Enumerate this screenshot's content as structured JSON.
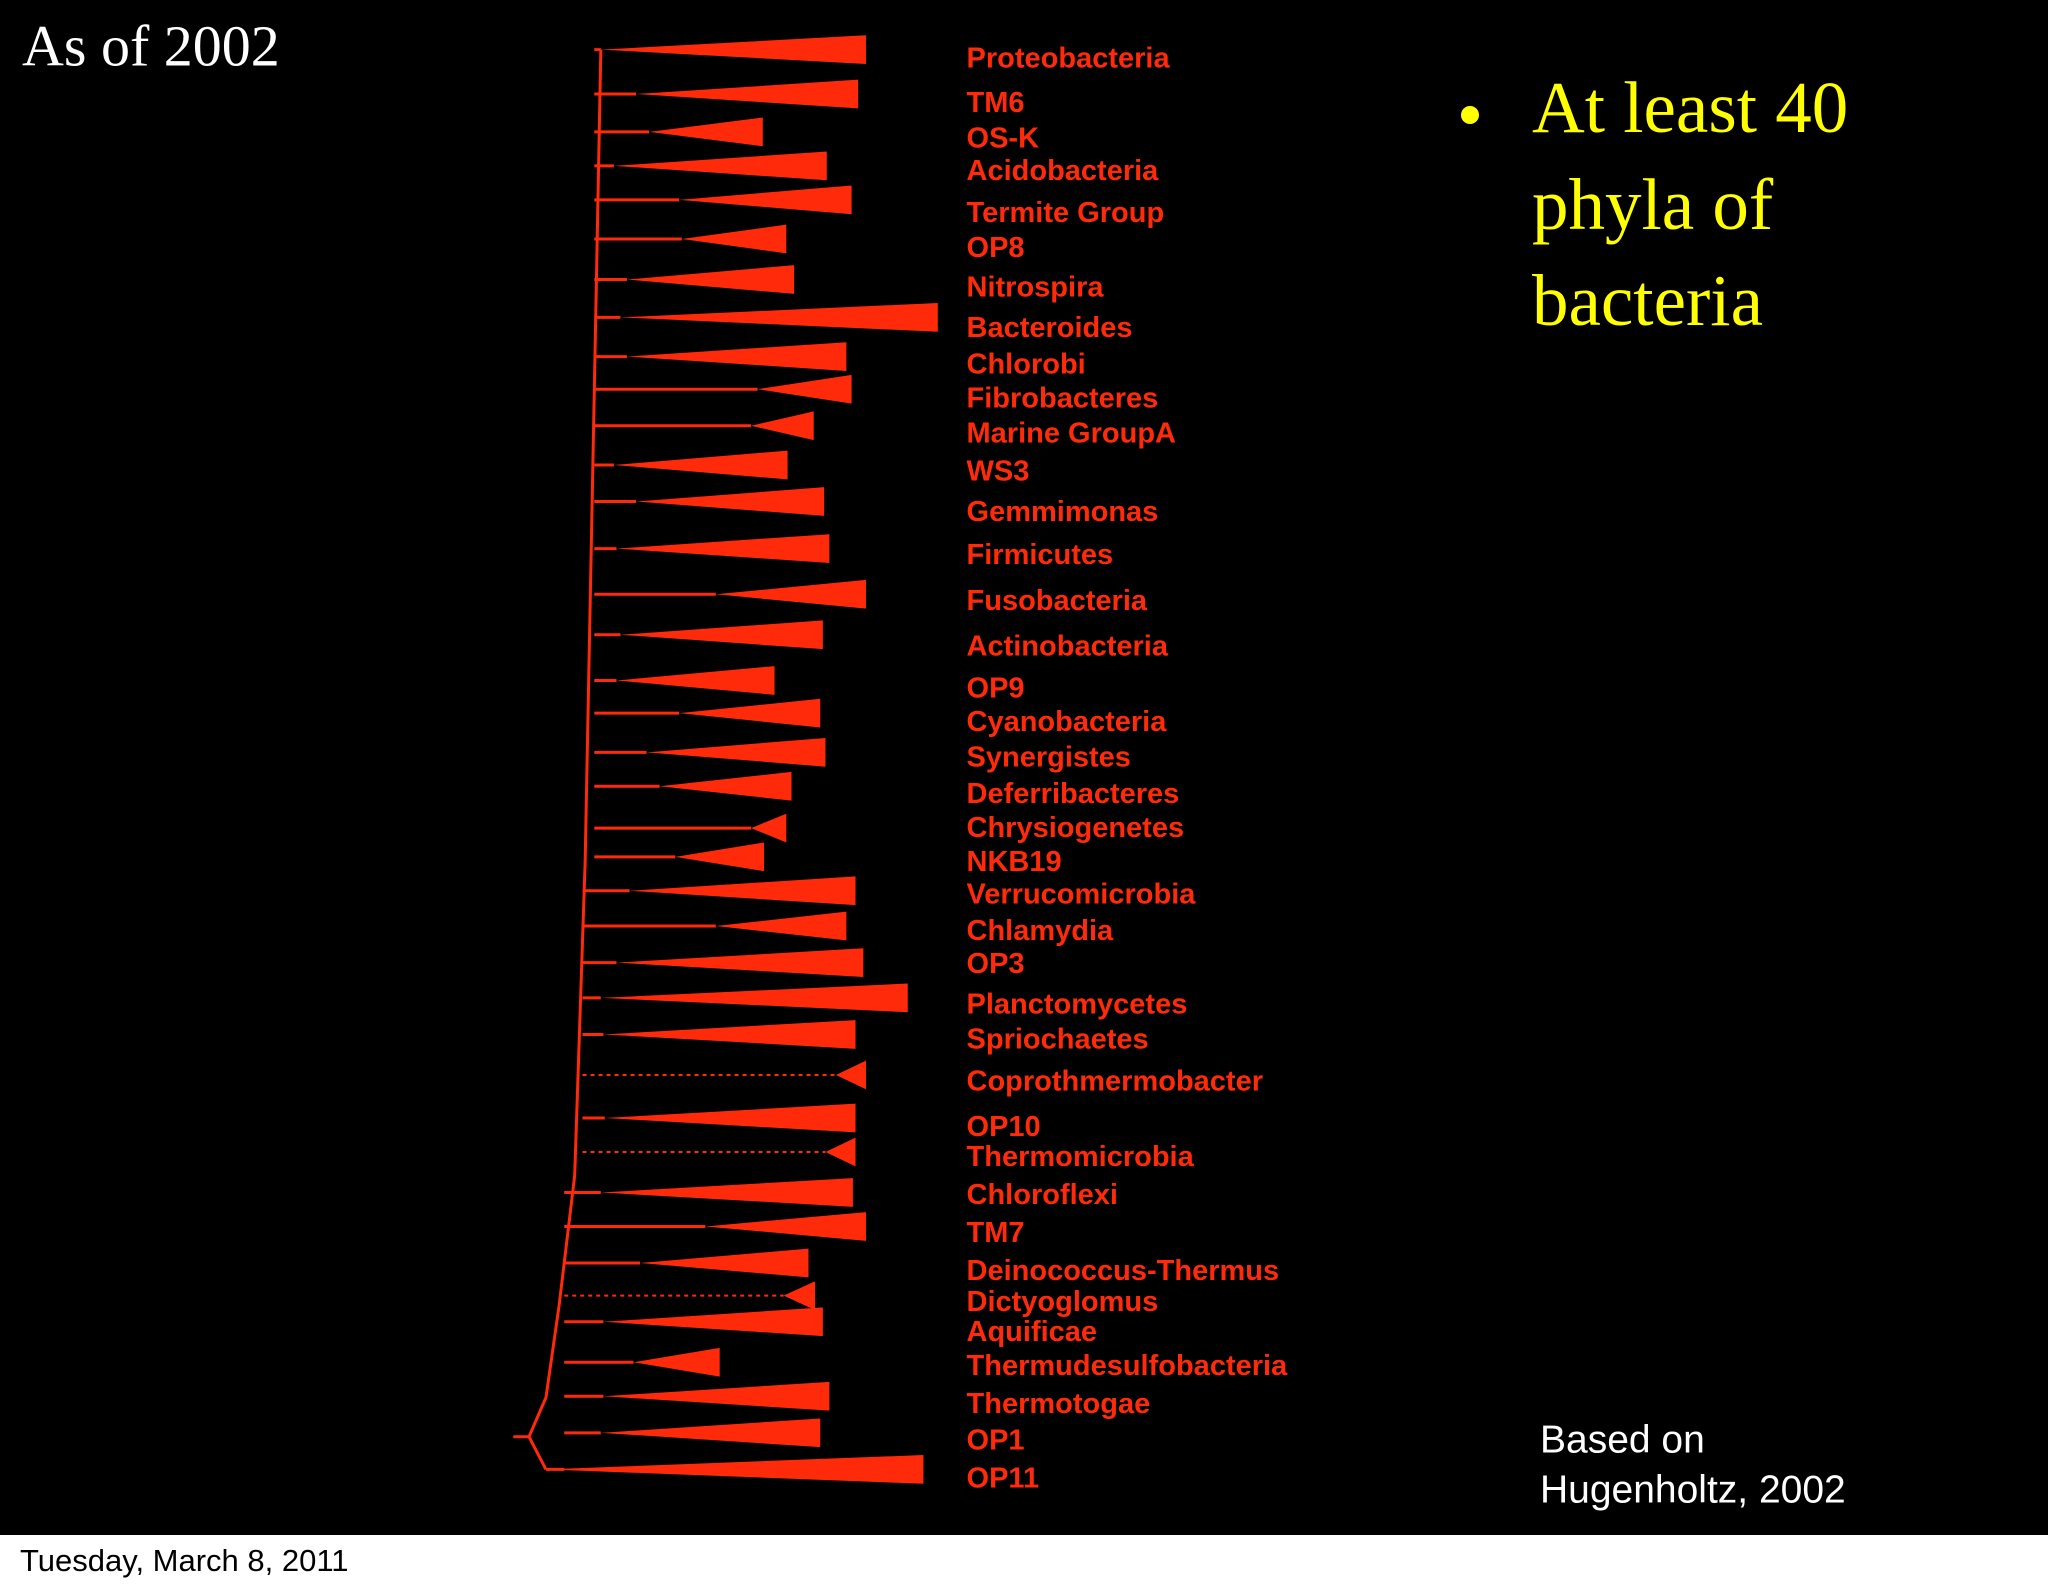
{
  "title": "As of 2002",
  "bullet": {
    "lines": [
      "At least 40",
      "phyla of",
      "bacteria"
    ]
  },
  "phyla": [
    "Proteobacteria",
    "TM6",
    "OS-K",
    "Acidobacteria",
    "Termite Group",
    "OP8",
    "Nitrospira",
    "Bacteroides",
    "Chlorobi",
    "Fibrobacteres",
    "Marine GroupA",
    "WS3",
    "Gemmimonas",
    "Firmicutes",
    "Fusobacteria",
    "Actinobacteria",
    "OP9",
    "Cyanobacteria",
    "Synergistes",
    "Deferribacteres",
    "Chrysiogenetes",
    "NKB19",
    "Verrucomicrobia",
    "Chlamydia",
    "OP3",
    "Planctomycetes",
    "Spriochaetes",
    "Coprothmermobacter",
    "OP10",
    "Thermomicrobia",
    "Chloroflexi",
    "TM7",
    "Deinococcus-Thermus",
    "Dictyoglomus",
    "Aquificae",
    "Thermudesulfobacteria",
    "Thermotogae",
    "OP1",
    "OP11"
  ],
  "credit": {
    "lines": [
      "Based on",
      "Hugenholtz, 2002"
    ]
  },
  "footer": "Tuesday, March 8, 2011"
}
